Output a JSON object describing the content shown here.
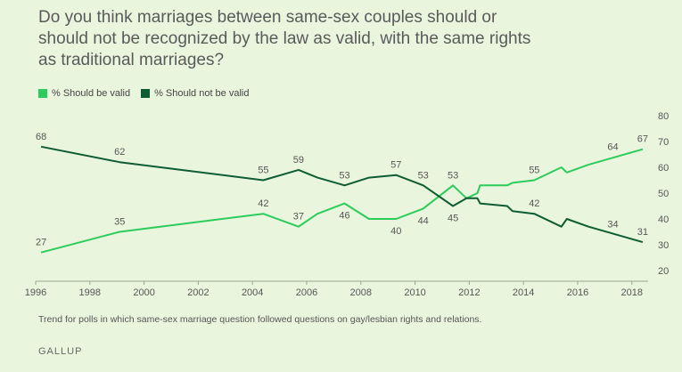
{
  "title": "Do you think marriages between same-sex couples should or should not be recognized by the law as valid, with the same rights as traditional marriages?",
  "footnote": "Trend for polls in which same-sex marriage question followed questions on gay/lesbian rights and relations.",
  "brand": "GALLUP",
  "colors": {
    "valid": "#2bcc5b",
    "not_valid": "#0d5c33",
    "grid": "#c9d6bd",
    "text": "#555555"
  },
  "chart_data": {
    "type": "line",
    "xlim": [
      1996,
      2018.6
    ],
    "ylim": [
      20,
      80
    ],
    "x_ticks": [
      "1996",
      "1998",
      "2000",
      "2002",
      "2004",
      "2006",
      "2008",
      "2010",
      "2012",
      "2014",
      "2016",
      "2018"
    ],
    "y_ticks": [
      "20",
      "30",
      "40",
      "50",
      "60",
      "70",
      "80"
    ],
    "grid": false,
    "legend_position": "top-left",
    "series": [
      {
        "name": "% Should be valid",
        "color": "#2bcc5b",
        "points": [
          [
            1996.2,
            27
          ],
          [
            1999.1,
            35
          ],
          [
            2004.4,
            42
          ],
          [
            2005.7,
            37
          ],
          [
            2006.4,
            42
          ],
          [
            2007.4,
            46
          ],
          [
            2008.3,
            40
          ],
          [
            2009.3,
            40
          ],
          [
            2010.3,
            44
          ],
          [
            2011.4,
            53
          ],
          [
            2011.9,
            48
          ],
          [
            2012.3,
            50
          ],
          [
            2012.4,
            53
          ],
          [
            2013.4,
            53
          ],
          [
            2013.6,
            54
          ],
          [
            2014.4,
            55
          ],
          [
            2015.4,
            60
          ],
          [
            2015.6,
            58
          ],
          [
            2016.4,
            61
          ],
          [
            2018.4,
            67
          ]
        ],
        "labels": [
          {
            "x": 1996.2,
            "y": 27,
            "text": "27",
            "pos": "above"
          },
          {
            "x": 1999.1,
            "y": 35,
            "text": "35",
            "pos": "above"
          },
          {
            "x": 2004.4,
            "y": 42,
            "text": "42",
            "pos": "above"
          },
          {
            "x": 2005.7,
            "y": 37,
            "text": "37",
            "pos": "above"
          },
          {
            "x": 2007.4,
            "y": 46,
            "text": "46",
            "pos": "below"
          },
          {
            "x": 2009.3,
            "y": 40,
            "text": "40",
            "pos": "below"
          },
          {
            "x": 2011.4,
            "y": 53,
            "text": "53",
            "pos": "above"
          },
          {
            "x": 2014.4,
            "y": 55,
            "text": "55",
            "pos": "above"
          },
          {
            "x": 2017.3,
            "y": 64,
            "text": "64",
            "pos": "above"
          },
          {
            "x": 2018.4,
            "y": 67,
            "text": "67",
            "pos": "above"
          }
        ]
      },
      {
        "name": "% Should not be valid",
        "color": "#0d5c33",
        "points": [
          [
            1996.2,
            68
          ],
          [
            1999.1,
            62
          ],
          [
            2004.4,
            55
          ],
          [
            2005.7,
            59
          ],
          [
            2006.4,
            56
          ],
          [
            2007.4,
            53
          ],
          [
            2008.3,
            56
          ],
          [
            2009.3,
            57
          ],
          [
            2010.3,
            53
          ],
          [
            2011.4,
            45
          ],
          [
            2011.9,
            48
          ],
          [
            2012.3,
            48
          ],
          [
            2012.4,
            46
          ],
          [
            2013.4,
            45
          ],
          [
            2013.6,
            43
          ],
          [
            2014.4,
            42
          ],
          [
            2015.4,
            37
          ],
          [
            2015.6,
            40
          ],
          [
            2016.4,
            37
          ],
          [
            2018.4,
            31
          ]
        ],
        "labels": [
          {
            "x": 1996.2,
            "y": 68,
            "text": "68",
            "pos": "above"
          },
          {
            "x": 1999.1,
            "y": 62,
            "text": "62",
            "pos": "above"
          },
          {
            "x": 2004.4,
            "y": 55,
            "text": "55",
            "pos": "above"
          },
          {
            "x": 2005.7,
            "y": 59,
            "text": "59",
            "pos": "above"
          },
          {
            "x": 2007.4,
            "y": 53,
            "text": "53",
            "pos": "above"
          },
          {
            "x": 2009.3,
            "y": 57,
            "text": "57",
            "pos": "above"
          },
          {
            "x": 2010.3,
            "y": 53,
            "text": "53",
            "pos": "above"
          },
          {
            "x": 2010.3,
            "y": 44,
            "text": "44",
            "pos": "below"
          },
          {
            "x": 2011.4,
            "y": 45,
            "text": "45",
            "pos": "below"
          },
          {
            "x": 2014.4,
            "y": 42,
            "text": "42",
            "pos": "above"
          },
          {
            "x": 2017.3,
            "y": 34,
            "text": "34",
            "pos": "above"
          },
          {
            "x": 2018.4,
            "y": 31,
            "text": "31",
            "pos": "above"
          }
        ]
      }
    ]
  }
}
